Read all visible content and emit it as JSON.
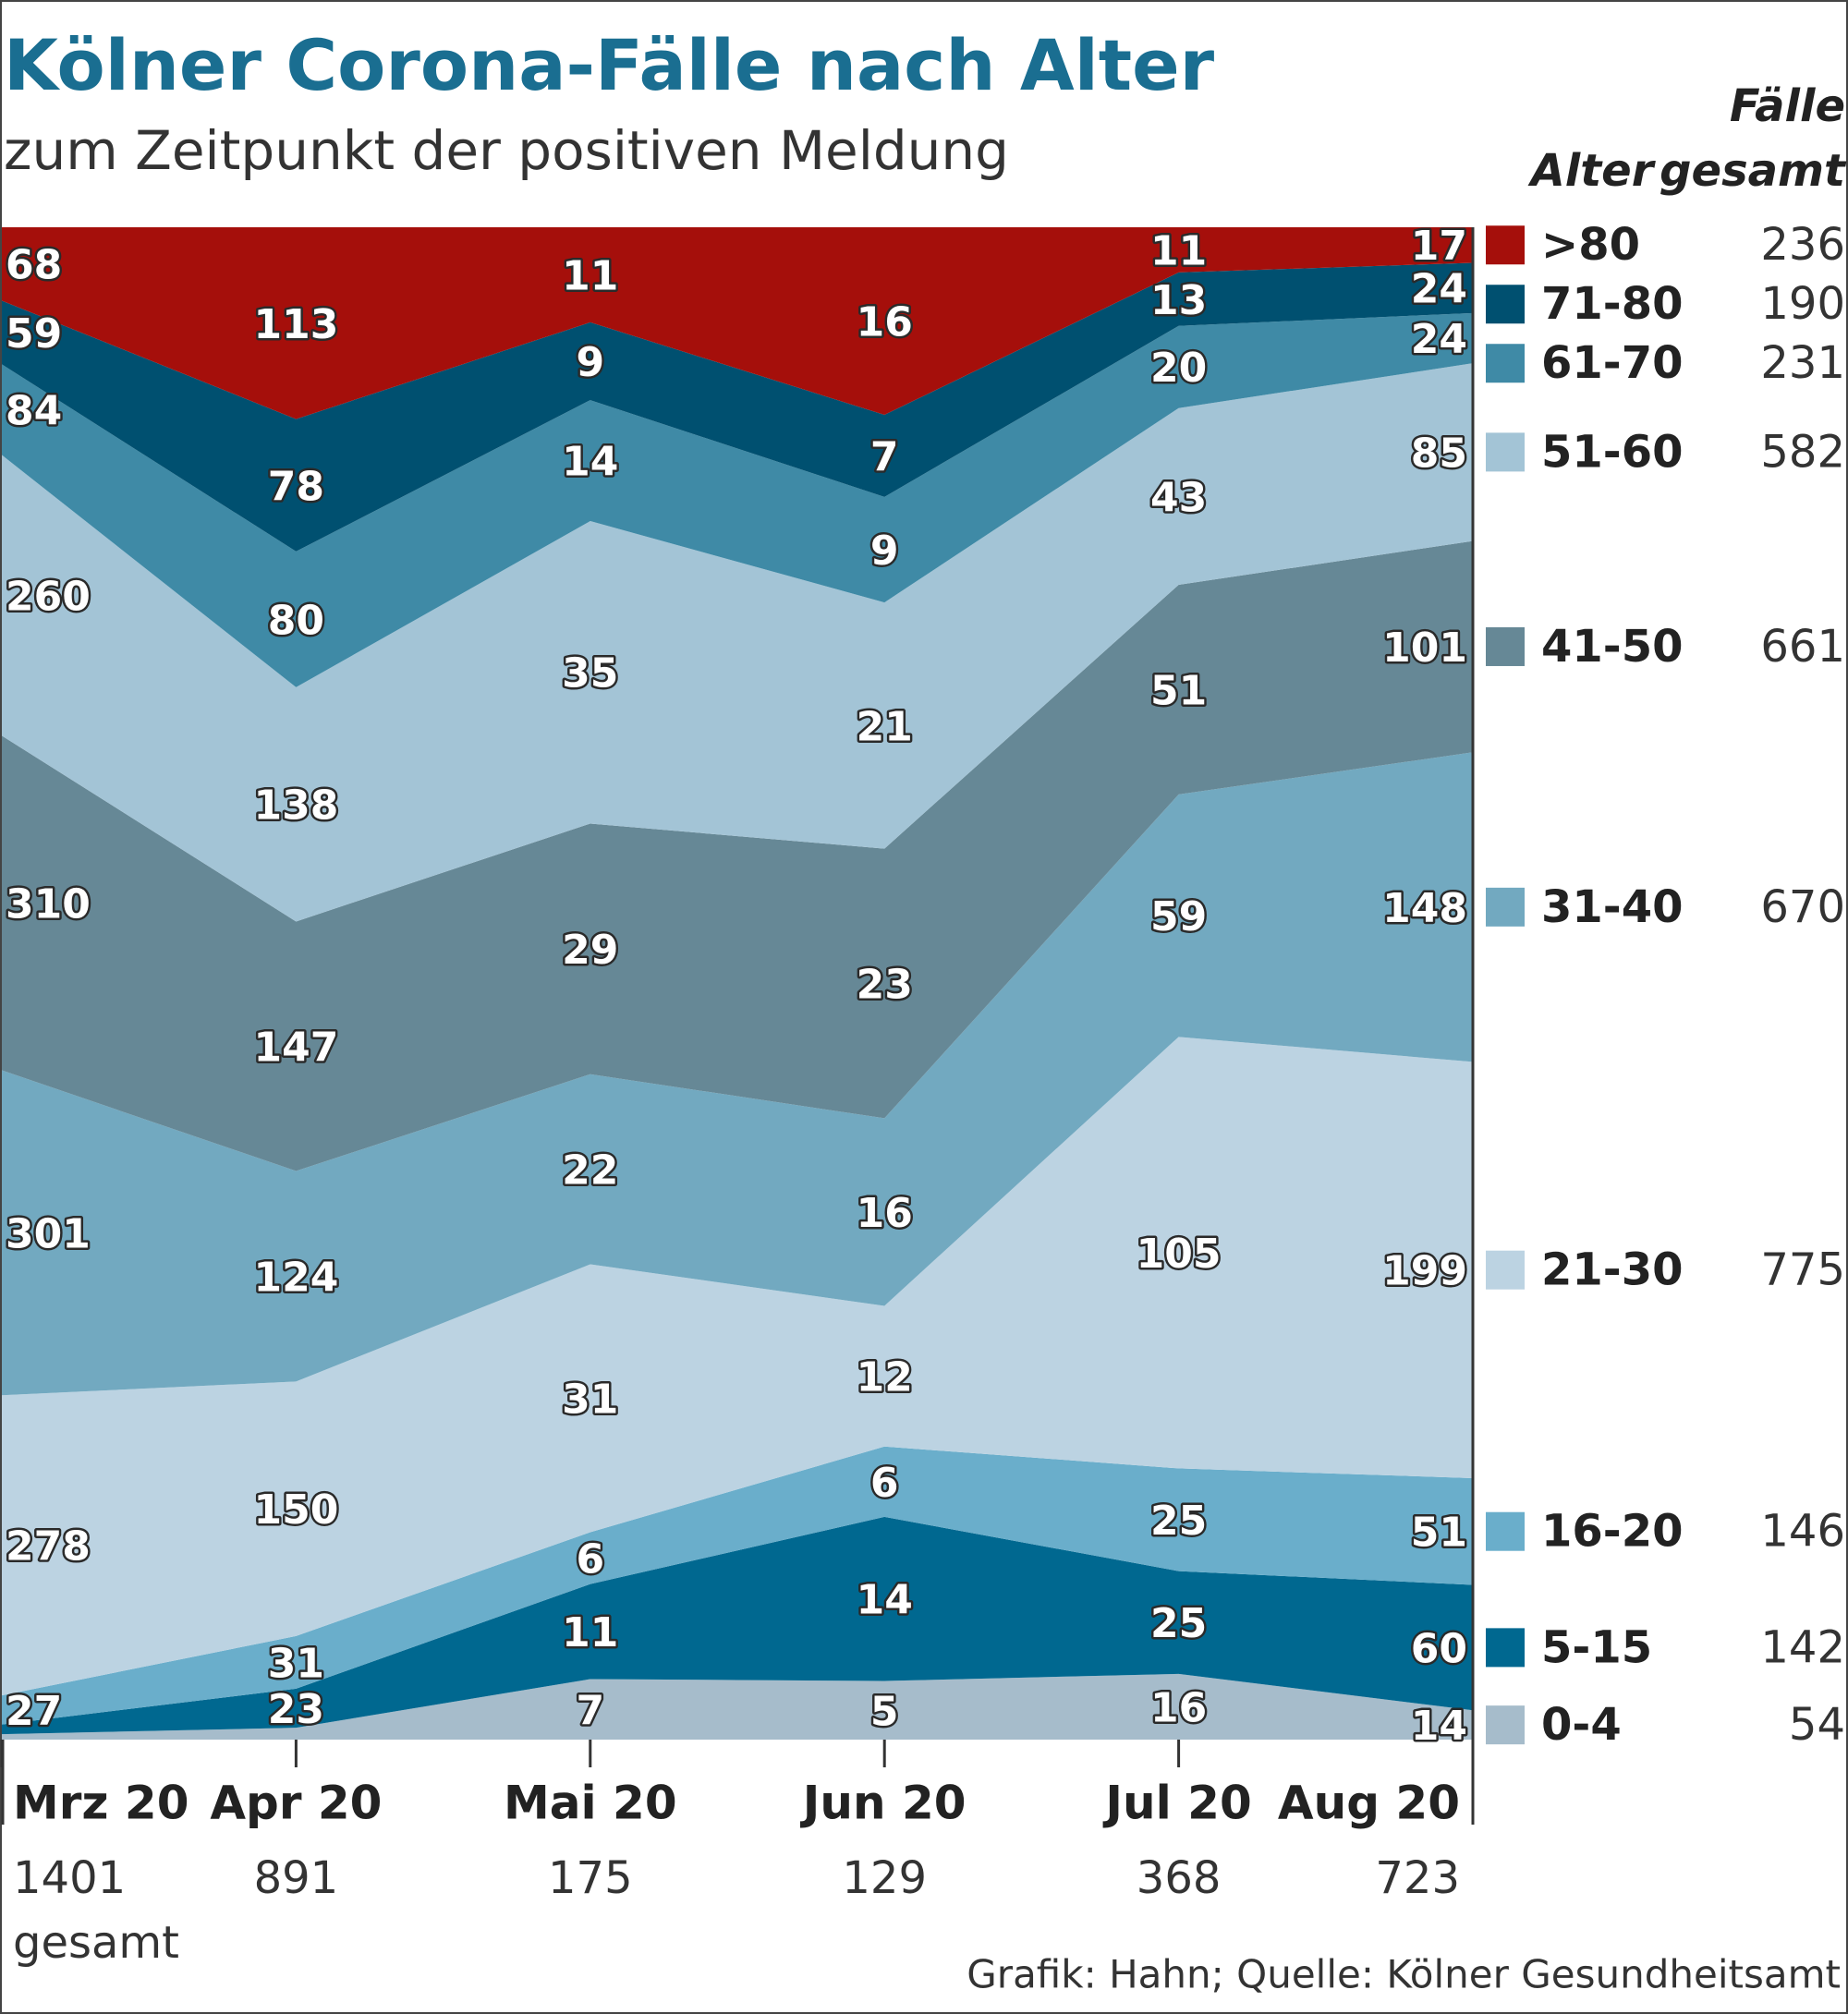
{
  "chart_data": {
    "type": "area",
    "stacking": "percent",
    "title": "Kölner Corona-Fälle nach Alter",
    "subtitle": "zum Zeitpunkt der positiven Meldung",
    "legend_header": "Alter",
    "totals_header": [
      "Fälle",
      "gesamt"
    ],
    "categories": [
      "Mrz 20",
      "Apr 20",
      "Mai 20",
      "Jun 20",
      "Jul 20",
      "Aug 20"
    ],
    "category_totals": [
      1401,
      891,
      175,
      129,
      368,
      723
    ],
    "category_totals_label": "gesamt",
    "series": [
      {
        "name": ">80",
        "color": "#a50f0b",
        "values": [
          68,
          113,
          11,
          16,
          11,
          17
        ],
        "total": 236
      },
      {
        "name": "71-80",
        "color": "#005070",
        "values": [
          59,
          78,
          9,
          7,
          13,
          24
        ],
        "total": 190
      },
      {
        "name": "61-70",
        "color": "#3f8aa6",
        "values": [
          84,
          80,
          14,
          9,
          20,
          24
        ],
        "total": 231
      },
      {
        "name": "51-60",
        "color": "#a3c4d6",
        "values": [
          260,
          138,
          35,
          21,
          43,
          85
        ],
        "total": 582
      },
      {
        "name": "41-50",
        "color": "#668896",
        "values": [
          310,
          147,
          29,
          23,
          51,
          101
        ],
        "total": 661
      },
      {
        "name": "31-40",
        "color": "#72a9c0",
        "values": [
          301,
          124,
          22,
          16,
          59,
          148
        ],
        "total": 670
      },
      {
        "name": "21-30",
        "color": "#bcd3e2",
        "values": [
          278,
          150,
          31,
          12,
          105,
          199
        ],
        "total": 775
      },
      {
        "name": "16-20",
        "color": "#6aaecb",
        "values": [
          27,
          31,
          6,
          6,
          25,
          51
        ],
        "total": 146
      },
      {
        "name": "5-15",
        "color": "#006890",
        "values": [
          9,
          23,
          11,
          14,
          25,
          60
        ],
        "value_labels": [
          null,
          "23",
          "11",
          "14",
          "25",
          "60"
        ],
        "total": 142
      },
      {
        "name": "0-4",
        "color": "#a6bccb",
        "values": [
          5,
          7,
          7,
          5,
          16,
          14
        ],
        "value_labels": [
          null,
          null,
          "7",
          "5",
          "16",
          "14"
        ],
        "total": 54
      }
    ],
    "source": "Grafik: Hahn; Quelle: Kölner Gesundheitsamt"
  }
}
